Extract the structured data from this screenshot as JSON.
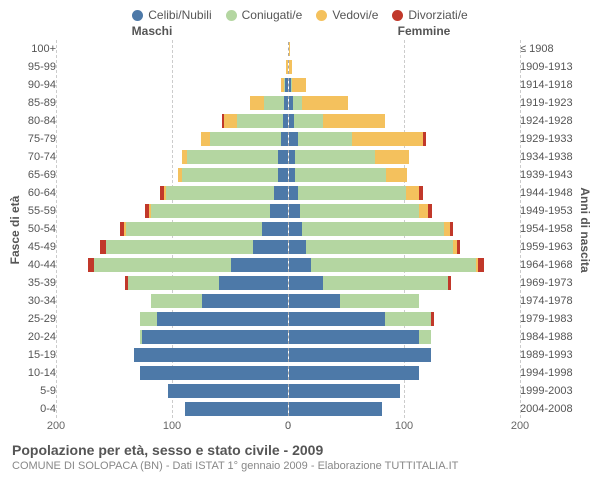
{
  "colors": {
    "celibi": "#4d79a8",
    "coniugati": "#b4d6a1",
    "vedovi": "#f4c15d",
    "divorziati": "#c1382a",
    "bg": "#ffffff",
    "text": "#555555",
    "grid": "#cccccc"
  },
  "legend": {
    "items": [
      {
        "label": "Celibi/Nubili",
        "color": "#4d79a8"
      },
      {
        "label": "Coniugati/e",
        "color": "#b4d6a1"
      },
      {
        "label": "Vedovi/e",
        "color": "#f4c15d"
      },
      {
        "label": "Divorziati/e",
        "color": "#c1382a"
      }
    ]
  },
  "headers": {
    "left": "Maschi",
    "right": "Femmine",
    "y_left": "Fasce di età",
    "y_right": "Anni di nascita"
  },
  "axis": {
    "max": 200,
    "ticks_left": [
      200,
      100,
      0
    ],
    "ticks_right": [
      0,
      100,
      200
    ]
  },
  "rows": [
    {
      "age": "100+",
      "birth": "≤ 1908",
      "m": {
        "c": 0,
        "co": 0,
        "v": 0,
        "d": 0
      },
      "f": {
        "c": 0,
        "co": 0,
        "v": 1,
        "d": 0
      }
    },
    {
      "age": "95-99",
      "birth": "1909-1913",
      "m": {
        "c": 0,
        "co": 0,
        "v": 1,
        "d": 0
      },
      "f": {
        "c": 0,
        "co": 0,
        "v": 3,
        "d": 0
      }
    },
    {
      "age": "90-94",
      "birth": "1914-1918",
      "m": {
        "c": 2,
        "co": 1,
        "v": 3,
        "d": 0
      },
      "f": {
        "c": 2,
        "co": 1,
        "v": 12,
        "d": 0
      }
    },
    {
      "age": "85-89",
      "birth": "1919-1923",
      "m": {
        "c": 3,
        "co": 18,
        "v": 12,
        "d": 0
      },
      "f": {
        "c": 4,
        "co": 8,
        "v": 40,
        "d": 0
      }
    },
    {
      "age": "80-84",
      "birth": "1924-1928",
      "m": {
        "c": 4,
        "co": 40,
        "v": 12,
        "d": 2
      },
      "f": {
        "c": 5,
        "co": 25,
        "v": 55,
        "d": 0
      }
    },
    {
      "age": "75-79",
      "birth": "1929-1933",
      "m": {
        "c": 6,
        "co": 62,
        "v": 8,
        "d": 0
      },
      "f": {
        "c": 8,
        "co": 48,
        "v": 62,
        "d": 3
      }
    },
    {
      "age": "70-74",
      "birth": "1934-1938",
      "m": {
        "c": 8,
        "co": 80,
        "v": 5,
        "d": 0
      },
      "f": {
        "c": 6,
        "co": 70,
        "v": 30,
        "d": 0
      }
    },
    {
      "age": "65-69",
      "birth": "1939-1943",
      "m": {
        "c": 8,
        "co": 85,
        "v": 3,
        "d": 0
      },
      "f": {
        "c": 6,
        "co": 80,
        "v": 18,
        "d": 0
      }
    },
    {
      "age": "60-64",
      "birth": "1944-1948",
      "m": {
        "c": 12,
        "co": 95,
        "v": 2,
        "d": 3
      },
      "f": {
        "c": 8,
        "co": 95,
        "v": 12,
        "d": 3
      }
    },
    {
      "age": "55-59",
      "birth": "1949-1953",
      "m": {
        "c": 15,
        "co": 105,
        "v": 2,
        "d": 3
      },
      "f": {
        "c": 10,
        "co": 105,
        "v": 8,
        "d": 3
      }
    },
    {
      "age": "50-54",
      "birth": "1954-1958",
      "m": {
        "c": 22,
        "co": 120,
        "v": 2,
        "d": 3
      },
      "f": {
        "c": 12,
        "co": 125,
        "v": 5,
        "d": 3
      }
    },
    {
      "age": "45-49",
      "birth": "1959-1963",
      "m": {
        "c": 30,
        "co": 130,
        "v": 0,
        "d": 5
      },
      "f": {
        "c": 15,
        "co": 130,
        "v": 3,
        "d": 3
      }
    },
    {
      "age": "40-44",
      "birth": "1964-1968",
      "m": {
        "c": 50,
        "co": 120,
        "v": 0,
        "d": 5
      },
      "f": {
        "c": 20,
        "co": 145,
        "v": 2,
        "d": 5
      }
    },
    {
      "age": "35-39",
      "birth": "1969-1973",
      "m": {
        "c": 60,
        "co": 80,
        "v": 0,
        "d": 3
      },
      "f": {
        "c": 30,
        "co": 110,
        "v": 0,
        "d": 3
      }
    },
    {
      "age": "30-34",
      "birth": "1974-1978",
      "m": {
        "c": 75,
        "co": 45,
        "v": 0,
        "d": 0
      },
      "f": {
        "c": 45,
        "co": 70,
        "v": 0,
        "d": 0
      }
    },
    {
      "age": "25-29",
      "birth": "1979-1983",
      "m": {
        "c": 115,
        "co": 15,
        "v": 0,
        "d": 0
      },
      "f": {
        "c": 85,
        "co": 40,
        "v": 0,
        "d": 3
      }
    },
    {
      "age": "20-24",
      "birth": "1984-1988",
      "m": {
        "c": 128,
        "co": 2,
        "v": 0,
        "d": 0
      },
      "f": {
        "c": 115,
        "co": 10,
        "v": 0,
        "d": 0
      }
    },
    {
      "age": "15-19",
      "birth": "1989-1993",
      "m": {
        "c": 135,
        "co": 0,
        "v": 0,
        "d": 0
      },
      "f": {
        "c": 125,
        "co": 0,
        "v": 0,
        "d": 0
      }
    },
    {
      "age": "10-14",
      "birth": "1994-1998",
      "m": {
        "c": 130,
        "co": 0,
        "v": 0,
        "d": 0
      },
      "f": {
        "c": 115,
        "co": 0,
        "v": 0,
        "d": 0
      }
    },
    {
      "age": "5-9",
      "birth": "1999-2003",
      "m": {
        "c": 105,
        "co": 0,
        "v": 0,
        "d": 0
      },
      "f": {
        "c": 98,
        "co": 0,
        "v": 0,
        "d": 0
      }
    },
    {
      "age": "0-4",
      "birth": "2004-2008",
      "m": {
        "c": 90,
        "co": 0,
        "v": 0,
        "d": 0
      },
      "f": {
        "c": 82,
        "co": 0,
        "v": 0,
        "d": 0
      }
    }
  ],
  "footer": {
    "title": "Popolazione per età, sesso e stato civile - 2009",
    "sub": "COMUNE DI SOLOPACA (BN) - Dati ISTAT 1° gennaio 2009 - Elaborazione TUTTITALIA.IT"
  }
}
